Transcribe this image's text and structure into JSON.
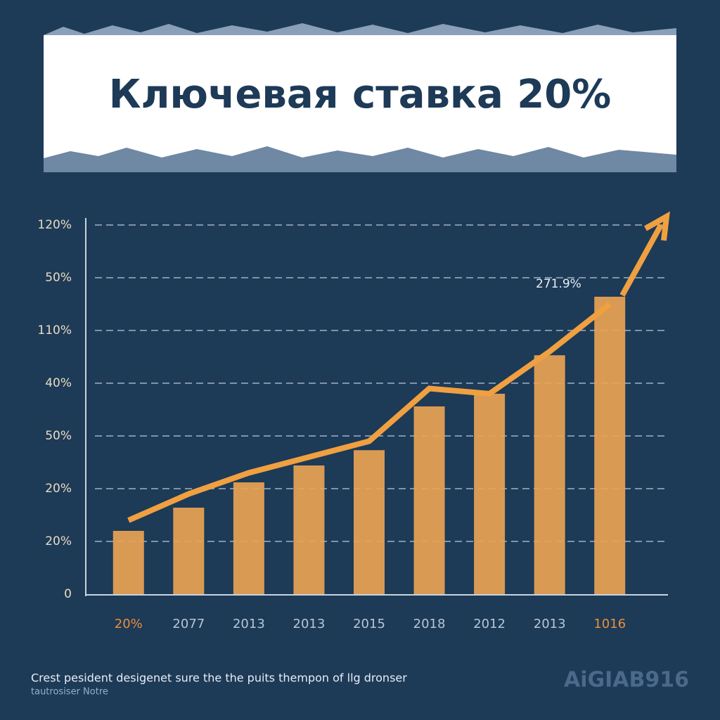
{
  "chart_data": {
    "type": "bar",
    "title": "Ключевая ставка 20%",
    "categories": [
      "20%",
      "2077",
      "2013",
      "2013",
      "2015",
      "2018",
      "2012",
      "2013",
      "1016"
    ],
    "series": [
      {
        "type": "bar",
        "color": "#e9a352",
        "values": [
          1.2,
          1.64,
          2.12,
          2.44,
          2.73,
          3.56,
          3.8,
          4.53,
          5.64
        ]
      },
      {
        "type": "line",
        "color": "#f0a040",
        "values": [
          1.4,
          1.9,
          2.3,
          2.6,
          2.9,
          3.9,
          3.8,
          4.6,
          5.5
        ]
      }
    ],
    "ylim": [
      0,
      7
    ],
    "yticks": [
      0,
      {
        "value": 1,
        "label": "20%"
      },
      {
        "value": 2,
        "label": "20%"
      },
      {
        "value": 3,
        "label": "50%"
      },
      {
        "value": 4,
        "label": "40%"
      },
      {
        "value": 5,
        "label": "110%"
      },
      {
        "value": 6,
        "label": "50%"
      },
      {
        "value": 7,
        "label": "120%"
      }
    ],
    "grid": true,
    "annotation": "271.9%"
  },
  "footer": {
    "caption": "Crest pesident desigenet sure the the puits thempon of llg dronser",
    "subcaption": "tautrosiser Notre",
    "logo": "AiGIAB916"
  }
}
